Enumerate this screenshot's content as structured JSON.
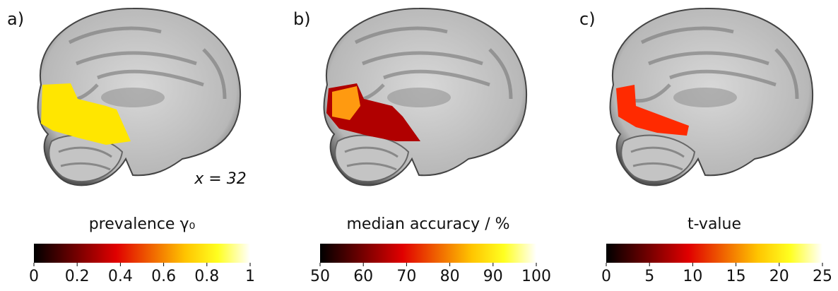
{
  "chart_data": [
    {
      "type": "colorbar",
      "panel_label": "a)",
      "title": "prevalence γ₀",
      "annotation": "x = 32",
      "xlim": [
        0,
        1
      ],
      "xticks": [
        0,
        0.2,
        0.4,
        0.6,
        0.8,
        1
      ]
    },
    {
      "type": "colorbar",
      "panel_label": "b)",
      "title": "median accuracy / %",
      "xlim": [
        50,
        100
      ],
      "xticks": [
        50,
        60,
        70,
        80,
        90,
        100
      ]
    },
    {
      "type": "colorbar",
      "panel_label": "c)",
      "title": "t-value",
      "xlim": [
        0,
        25
      ],
      "xticks": [
        0,
        5,
        10,
        15,
        20,
        25
      ]
    }
  ]
}
